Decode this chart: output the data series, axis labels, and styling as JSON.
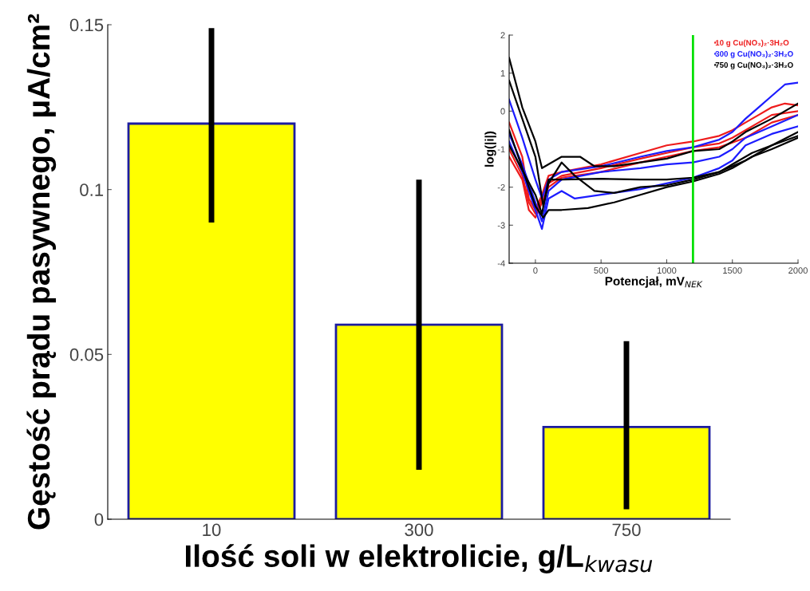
{
  "chart_data": [
    {
      "type": "bar",
      "xlabel": "Ilość soli w elektrolicie, g/L$_{kwasu}$",
      "ylabel": "Gęstość prądu pasywnego, μA/cm²",
      "categories": [
        "10",
        "300",
        "750"
      ],
      "values": [
        0.12,
        0.059,
        0.028
      ],
      "color": "#ffff00",
      "errors": [
        [
          0.09,
          0.149
        ],
        [
          0.015,
          0.103
        ],
        [
          0.003,
          0.054
        ]
      ],
      "ylim": [
        0,
        0.15
      ],
      "yticks": [
        0,
        0.05,
        0.1,
        0.15
      ],
      "grid": false,
      "legend": false
    },
    {
      "type": "line",
      "xlabel": "Potencjał, mV$_{NEK}$",
      "ylabel": "log(|i|)",
      "xlim": [
        -200,
        2000
      ],
      "ylim": [
        -4,
        2
      ],
      "xticks": [
        0,
        500,
        1000,
        1500,
        2000
      ],
      "yticks": [
        -4,
        -3,
        -2,
        -1,
        0,
        1,
        2
      ],
      "grid": false,
      "legend": "top right",
      "marker": "none",
      "line_style": "solid",
      "ref_lines": [
        {
          "axis": "x",
          "value": 1200,
          "color": "#00e000"
        }
      ],
      "series": [
        {
          "name": "10 g Cu(NO₃)₂·3H₂O",
          "color": "#ee1c1c",
          "x": [
            -200,
            -100,
            -50,
            0,
            50,
            100,
            200,
            500,
            800,
            1000,
            1200,
            1400,
            1500,
            1600,
            1700,
            1800,
            1900,
            2000
          ],
          "values": [
            -0.3,
            -1.2,
            -2.3,
            -2.6,
            -2.2,
            -1.7,
            -1.6,
            -1.4,
            -1.1,
            -0.9,
            -0.8,
            -0.65,
            -0.5,
            -0.3,
            -0.1,
            0.1,
            0.2,
            0.15
          ]
        },
        {
          "color": "#ee1c1c",
          "x": [
            -200,
            -100,
            -50,
            0,
            50,
            100,
            200,
            500,
            800,
            1000,
            1200,
            1400,
            1500,
            1600,
            1700,
            1800,
            2000
          ],
          "values": [
            -1.0,
            -1.7,
            -2.4,
            -2.7,
            -2.3,
            -1.9,
            -1.7,
            -1.5,
            -1.25,
            -1.1,
            -0.95,
            -0.85,
            -0.7,
            -0.5,
            -0.3,
            -0.1,
            0.0
          ]
        },
        {
          "color": "#ee1c1c",
          "x": [
            -200,
            -100,
            -50,
            0,
            50,
            100,
            200,
            500,
            800,
            1000,
            1200,
            1400,
            1600,
            1800,
            2000
          ],
          "values": [
            -1.2,
            -1.8,
            -2.6,
            -2.8,
            -2.4,
            -2.0,
            -1.75,
            -1.6,
            -1.35,
            -1.2,
            -1.05,
            -0.95,
            -0.7,
            -0.3,
            -0.1
          ]
        },
        {
          "name": "300 g Cu(NO₃)₂·3H₂O",
          "color": "#1c1cff",
          "x": [
            -200,
            -100,
            0,
            50,
            100,
            200,
            500,
            800,
            1000,
            1200,
            1400,
            1500,
            1600,
            1700,
            1800,
            1900,
            2000
          ],
          "values": [
            0.3,
            -0.7,
            -1.8,
            -2.3,
            -1.8,
            -1.6,
            -1.45,
            -1.2,
            -1.05,
            -0.95,
            -0.75,
            -0.55,
            -0.2,
            0.1,
            0.4,
            0.7,
            0.75
          ]
        },
        {
          "color": "#1c1cff",
          "x": [
            -200,
            -100,
            0,
            50,
            100,
            200,
            500,
            800,
            1000,
            1200,
            1400,
            1500,
            1600,
            1800,
            2000
          ],
          "values": [
            -0.6,
            -1.4,
            -2.4,
            -2.9,
            -2.1,
            -1.8,
            -1.6,
            -1.5,
            -1.4,
            -1.35,
            -1.2,
            -1.0,
            -0.7,
            -0.4,
            -0.1
          ]
        },
        {
          "color": "#1c1cff",
          "x": [
            -200,
            -100,
            0,
            50,
            100,
            200,
            300,
            500,
            800,
            1000,
            1200,
            1400,
            1500,
            1600,
            1800,
            2000
          ],
          "values": [
            -0.8,
            -1.6,
            -2.6,
            -3.1,
            -2.3,
            -2.1,
            -2.3,
            -2.2,
            -2.05,
            -1.9,
            -1.75,
            -1.5,
            -1.3,
            -0.9,
            -0.6,
            -0.4
          ]
        },
        {
          "name": "750 g Cu(NO₃)₂·3H₂O",
          "color": "#000000",
          "x": [
            -200,
            -100,
            0,
            50,
            100,
            200,
            340,
            450,
            600,
            800,
            1000,
            1200,
            1400,
            1500,
            1600,
            1800,
            2000
          ],
          "values": [
            1.4,
            0.1,
            -0.8,
            -1.5,
            -1.4,
            -1.2,
            -1.2,
            -1.45,
            -1.45,
            -1.35,
            -1.25,
            -1.05,
            -1.0,
            -0.8,
            -0.55,
            -0.2,
            0.2
          ]
        },
        {
          "color": "#000000",
          "x": [
            -200,
            -100,
            0,
            60,
            100,
            200,
            300,
            450,
            600,
            800,
            1000,
            1200,
            1400,
            1500,
            1650,
            1800,
            2000
          ],
          "values": [
            0.8,
            -0.2,
            -1.2,
            -2.5,
            -1.9,
            -1.35,
            -1.7,
            -2.1,
            -2.15,
            -2.0,
            -1.95,
            -1.8,
            -1.6,
            -1.4,
            -1.1,
            -0.9,
            -0.65
          ]
        },
        {
          "color": "#000000",
          "x": [
            -200,
            -100,
            0,
            60,
            100,
            200,
            400,
            600,
            800,
            1000,
            1200,
            1400,
            1500,
            1650,
            1800,
            2000
          ],
          "values": [
            -0.5,
            -1.5,
            -2.5,
            -2.8,
            -2.6,
            -2.6,
            -2.55,
            -2.4,
            -2.2,
            -2.0,
            -1.85,
            -1.65,
            -1.5,
            -1.2,
            -1.0,
            -0.7
          ]
        },
        {
          "color": "#000000",
          "x": [
            -200,
            0,
            50,
            100,
            200,
            500,
            800,
            1000,
            1200,
            1400,
            1600,
            1800,
            2000
          ],
          "values": [
            -0.9,
            -2.2,
            -2.7,
            -1.8,
            -1.8,
            -1.78,
            -1.8,
            -1.8,
            -1.75,
            -1.6,
            -1.3,
            -0.9,
            -0.55
          ]
        }
      ]
    }
  ]
}
